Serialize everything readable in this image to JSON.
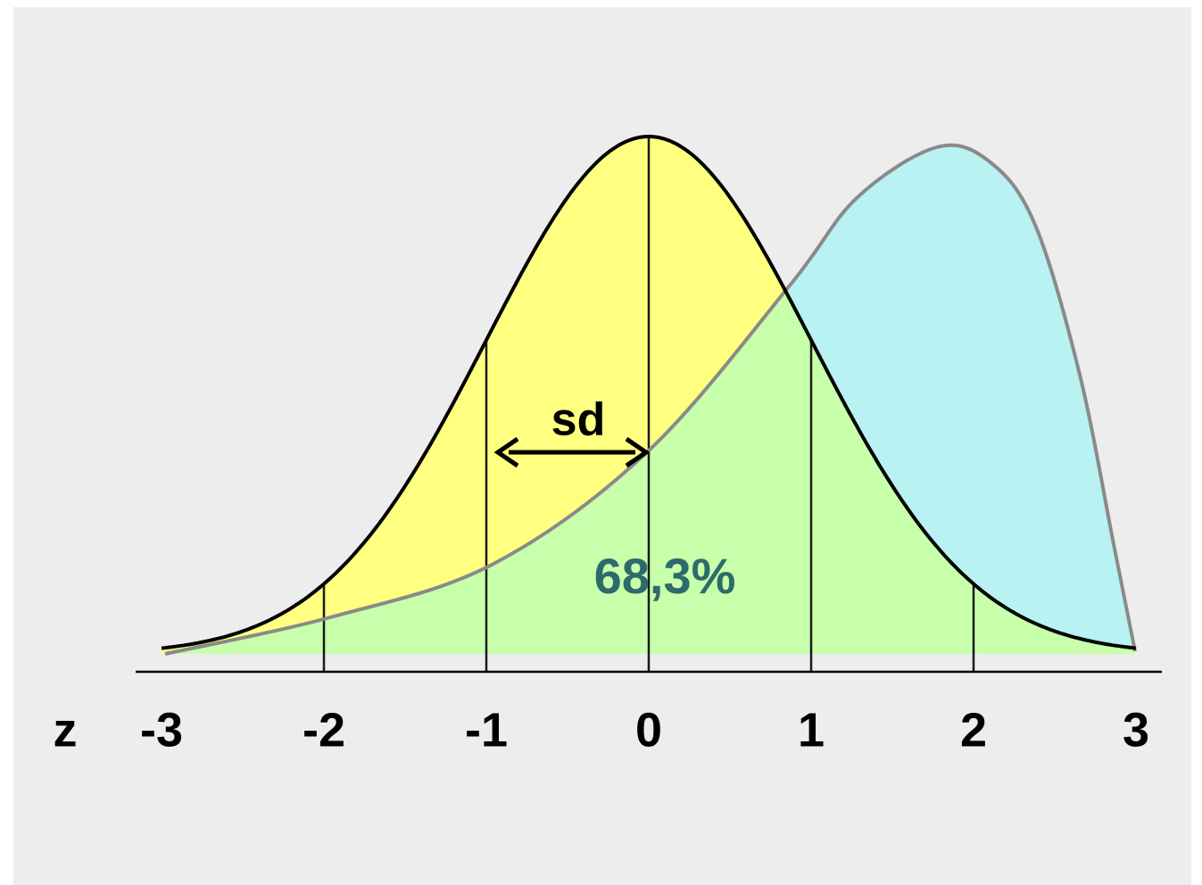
{
  "axis_label": "z",
  "ticks": [
    "-3",
    "-2",
    "-1",
    "0",
    "1",
    "2",
    "3"
  ],
  "sd_label": "sd",
  "area_label": "68,3%"
}
